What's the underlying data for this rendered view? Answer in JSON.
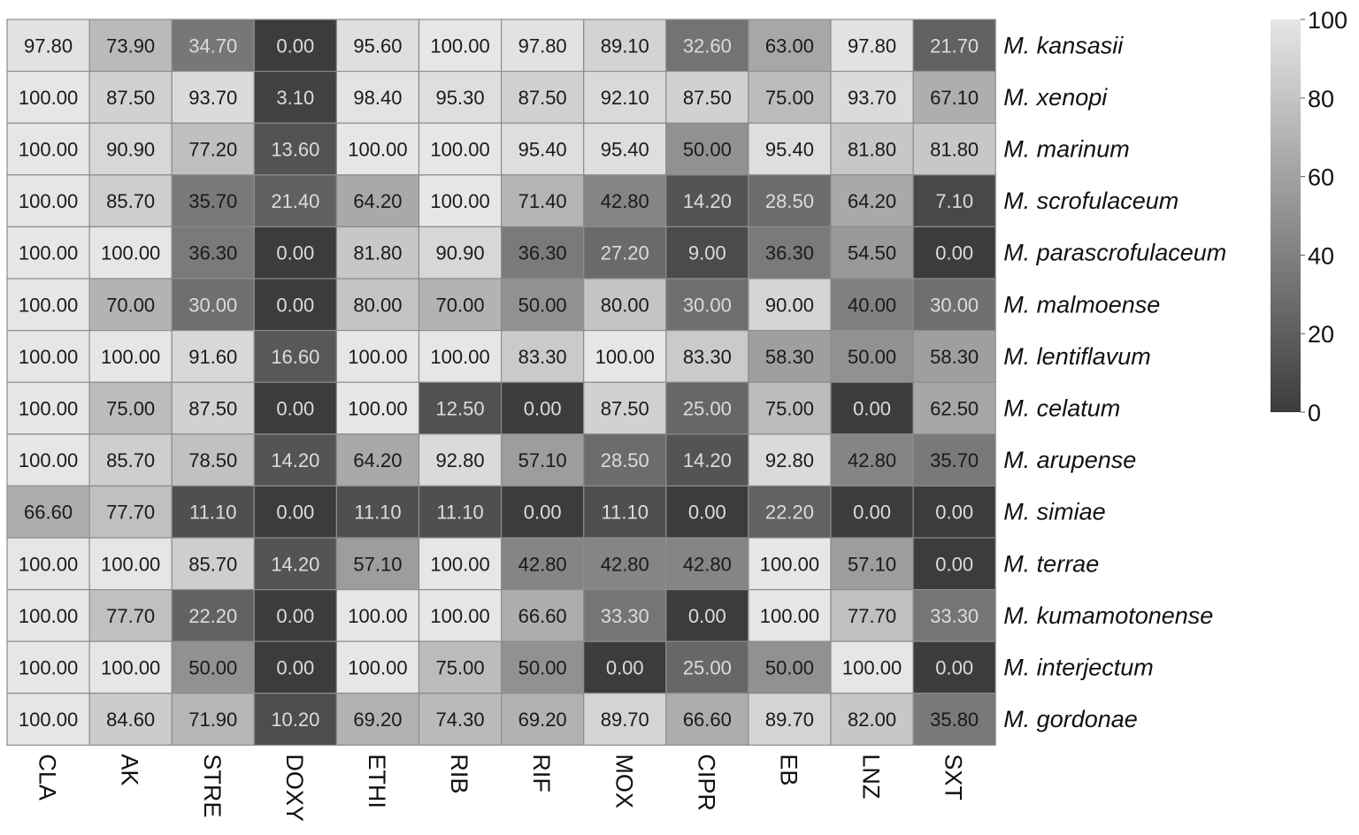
{
  "chart_data": {
    "type": "heatmap",
    "title": "",
    "xlabel": "",
    "ylabel": "",
    "columns": [
      "CLA",
      "AK",
      "STRE",
      "DOXY",
      "ETHI",
      "RIB",
      "RIF",
      "MOX",
      "CIPR",
      "EB",
      "LNZ",
      "SXT"
    ],
    "rows": [
      {
        "prefix": "M.",
        "species": "kansasii",
        "values": [
          97.8,
          73.9,
          34.7,
          0.0,
          95.6,
          100.0,
          97.8,
          89.1,
          32.6,
          63.0,
          97.8,
          21.7
        ]
      },
      {
        "prefix": "M.",
        "species": "xenopi",
        "values": [
          100.0,
          87.5,
          93.7,
          3.1,
          98.4,
          95.3,
          87.5,
          92.1,
          87.5,
          75.0,
          93.7,
          67.1
        ]
      },
      {
        "prefix": "M.",
        "species": "marinum",
        "values": [
          100.0,
          90.9,
          77.2,
          13.6,
          100.0,
          100.0,
          95.4,
          95.4,
          50.0,
          95.4,
          81.8,
          81.8
        ]
      },
      {
        "prefix": "M.",
        "species": "scrofulaceum",
        "values": [
          100.0,
          85.7,
          35.7,
          21.4,
          64.2,
          100.0,
          71.4,
          42.8,
          14.2,
          28.5,
          64.2,
          7.1
        ]
      },
      {
        "prefix": "M.",
        "species": "parascrofulaceum",
        "values": [
          100.0,
          100.0,
          36.3,
          0.0,
          81.8,
          90.9,
          36.3,
          27.2,
          9.0,
          36.3,
          54.5,
          0.0
        ]
      },
      {
        "prefix": "M.",
        "species": "malmoense",
        "values": [
          100.0,
          70.0,
          30.0,
          0.0,
          80.0,
          70.0,
          50.0,
          80.0,
          30.0,
          90.0,
          40.0,
          30.0
        ]
      },
      {
        "prefix": "M.",
        "species": "lentiflavum",
        "values": [
          100.0,
          100.0,
          91.6,
          16.6,
          100.0,
          100.0,
          83.3,
          100.0,
          83.3,
          58.3,
          50.0,
          58.3
        ]
      },
      {
        "prefix": "M.",
        "species": "celatum",
        "values": [
          100.0,
          75.0,
          87.5,
          0.0,
          100.0,
          12.5,
          0.0,
          87.5,
          25.0,
          75.0,
          0.0,
          62.5
        ]
      },
      {
        "prefix": "M.",
        "species": "arupense",
        "values": [
          100.0,
          85.7,
          78.5,
          14.2,
          64.2,
          92.8,
          57.1,
          28.5,
          14.2,
          92.8,
          42.8,
          35.7
        ]
      },
      {
        "prefix": "M.",
        "species": "simiae",
        "values": [
          66.6,
          77.7,
          11.1,
          0.0,
          11.1,
          11.1,
          0.0,
          11.1,
          0.0,
          22.2,
          0.0,
          0.0
        ]
      },
      {
        "prefix": "M.",
        "species": "terrae",
        "values": [
          100.0,
          100.0,
          85.7,
          14.2,
          57.1,
          100.0,
          42.8,
          42.8,
          42.8,
          100.0,
          57.1,
          0.0
        ]
      },
      {
        "prefix": "M.",
        "species": "kumamotonense",
        "values": [
          100.0,
          77.7,
          22.2,
          0.0,
          100.0,
          100.0,
          66.6,
          33.3,
          0.0,
          100.0,
          77.7,
          33.3
        ]
      },
      {
        "prefix": "M.",
        "species": "interjectum",
        "values": [
          100.0,
          100.0,
          50.0,
          0.0,
          100.0,
          75.0,
          50.0,
          0.0,
          25.0,
          50.0,
          100.0,
          0.0
        ]
      },
      {
        "prefix": "M.",
        "species": "gordonae",
        "values": [
          100.0,
          84.6,
          71.9,
          10.2,
          69.2,
          74.3,
          69.2,
          89.7,
          66.6,
          89.7,
          82.0,
          35.8
        ]
      }
    ],
    "value_format_decimals": 2,
    "color_scale": {
      "min": 0,
      "max": 100,
      "low_color": "#3c3c3c",
      "high_color": "#e6e6e6",
      "ticks": [
        0,
        20,
        40,
        60,
        80,
        100
      ],
      "position": "right"
    },
    "cell_border_color": "#8c8c8c",
    "grid": true,
    "legend": "colorbar top-right"
  }
}
